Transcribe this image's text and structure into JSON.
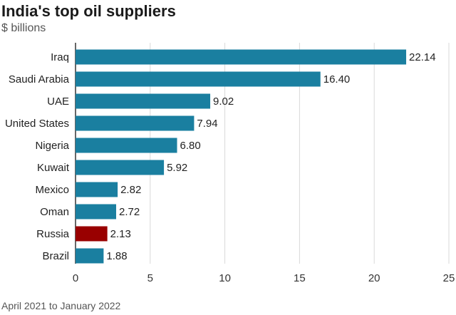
{
  "header": {
    "title": "India's top oil suppliers",
    "subtitle": "$ billions"
  },
  "footer": {
    "note": "April 2021 to January 2022"
  },
  "chart_data": {
    "type": "bar",
    "orientation": "horizontal",
    "title": "India's top oil suppliers",
    "subtitle": "$ billions",
    "xlabel": "",
    "ylabel": "",
    "xlim": [
      0,
      25
    ],
    "xticks": [
      0,
      5,
      10,
      15,
      20,
      25
    ],
    "grid": "vertical",
    "categories": [
      "Iraq",
      "Saudi Arabia",
      "UAE",
      "United States",
      "Nigeria",
      "Kuwait",
      "Mexico",
      "Oman",
      "Russia",
      "Brazil"
    ],
    "values": [
      22.14,
      16.4,
      9.02,
      7.94,
      6.8,
      5.92,
      2.82,
      2.72,
      2.13,
      1.88
    ],
    "value_labels": [
      "22.14",
      "16.40",
      "9.02",
      "7.94",
      "6.80",
      "5.92",
      "2.82",
      "2.72",
      "2.13",
      "1.88"
    ],
    "colors": {
      "default": "#1a7fa0",
      "highlight": "#990000",
      "highlight_category": "Russia"
    }
  }
}
